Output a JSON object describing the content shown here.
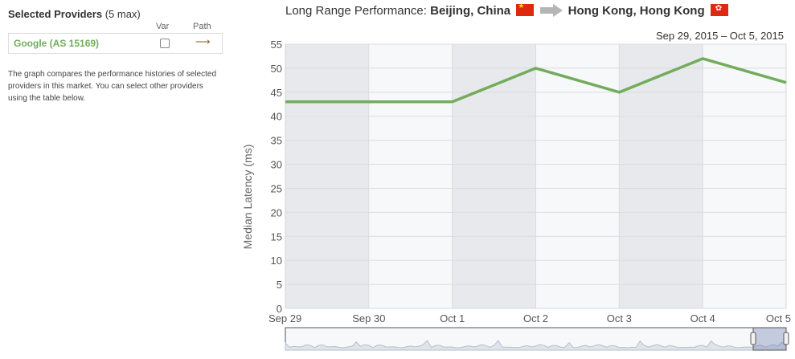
{
  "selected_providers": {
    "title": "Selected Providers",
    "max_note": "(5 max)",
    "col_var": "Var",
    "col_path": "Path",
    "providers": [
      {
        "name": "Google (AS 15169)",
        "var_checked": false,
        "color": "#72ac5c"
      }
    ],
    "description": "The graph compares the performance histories of selected providers in this market. You can select other providers using the table below."
  },
  "header": {
    "label": "Long Range Performance:",
    "from": "Beijing, China",
    "to": "Hong Kong, Hong Kong",
    "from_flag_icon": "china-flag",
    "to_flag_icon": "hong-kong-flag"
  },
  "date_range": "Sep 29, 2015 – Oct 5, 2015",
  "chart_data": {
    "type": "line",
    "title": "",
    "xlabel": "",
    "ylabel": "Median Latency (ms)",
    "categories": [
      "Sep 29",
      "Sep 30",
      "Oct  1",
      "Oct  2",
      "Oct  3",
      "Oct  4",
      "Oct  5"
    ],
    "series": [
      {
        "name": "Google (AS 15169)",
        "color": "#72ac5c",
        "values": [
          43,
          43,
          43,
          50,
          45,
          52,
          47
        ]
      }
    ],
    "ylim": [
      0,
      55
    ],
    "yticks": [
      0,
      5,
      10,
      15,
      20,
      25,
      30,
      35,
      40,
      45,
      50,
      55
    ],
    "grid": true,
    "alternating_day_bands": true,
    "navigator": true
  }
}
